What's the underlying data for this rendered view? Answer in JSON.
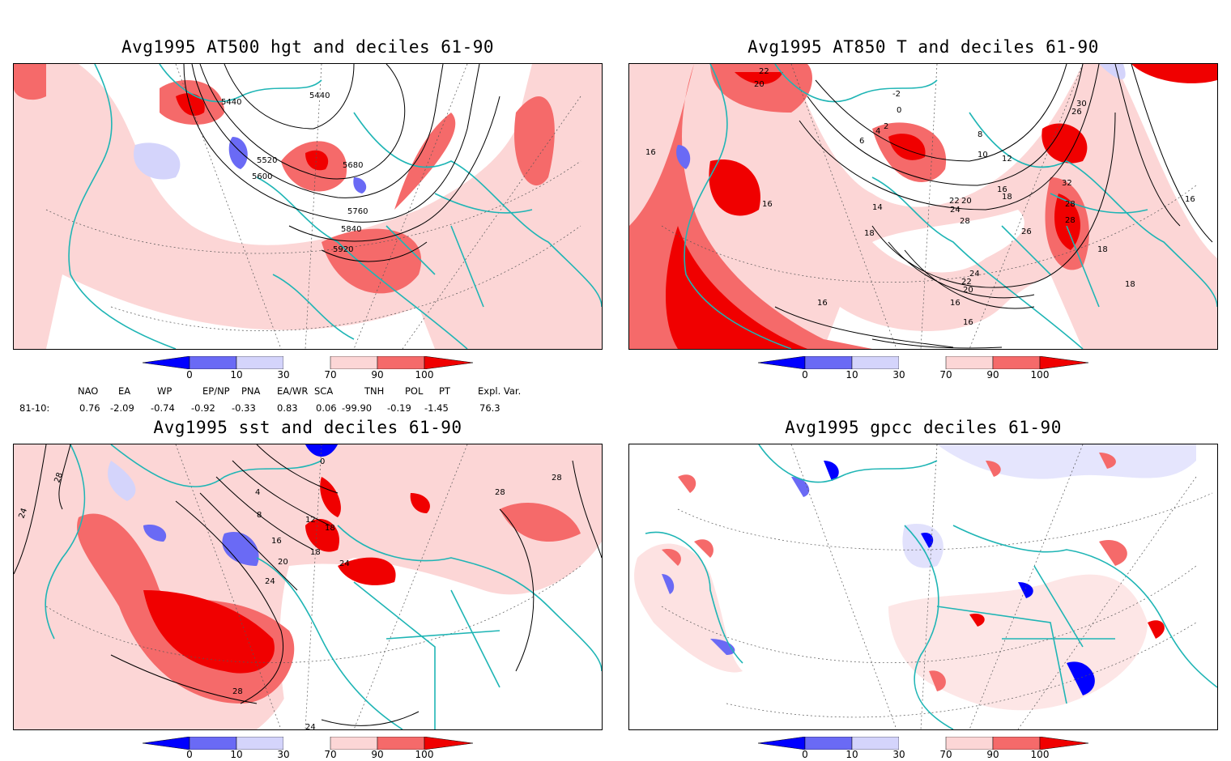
{
  "panels": [
    {
      "id": "p1",
      "title": "Avg1995 AT500 hgt and deciles 61-90",
      "contour_labels": [
        "5440",
        "5440",
        "5520",
        "5600",
        "5680",
        "5760",
        "5840",
        "5920"
      ]
    },
    {
      "id": "p2",
      "title": "Avg1995 AT850 T and deciles 61-90",
      "contour_labels": [
        "22",
        "20",
        "-2",
        "0",
        "2",
        "4",
        "6",
        "8",
        "10",
        "12",
        "14",
        "16",
        "16",
        "18",
        "18",
        "16",
        "20",
        "22",
        "24",
        "26",
        "28",
        "30",
        "32",
        "28",
        "28",
        "26",
        "24",
        "22",
        "20",
        "18",
        "16",
        "16",
        "16",
        "18",
        "16"
      ]
    },
    {
      "id": "p3",
      "title": "Avg1995 sst and deciles 61-90",
      "contour_labels": [
        "28",
        "24",
        "28",
        "28",
        "0",
        "4",
        "8",
        "12",
        "16",
        "20",
        "24",
        "18",
        "24",
        "28",
        "18",
        "24"
      ]
    },
    {
      "id": "p4",
      "title": "Avg1995 gpcc deciles 61-90",
      "contour_labels": []
    }
  ],
  "colorbar": {
    "labels": [
      "0",
      "10",
      "30",
      "70",
      "90",
      "100"
    ],
    "colors": [
      "#0000ff",
      "#6a6af5",
      "#d4d4fb",
      "#ffffff",
      "#fcd6d6",
      "#f56a6a",
      "#f00000"
    ]
  },
  "indices": {
    "row_label": "81-10:",
    "headers": [
      "NAO",
      "EA",
      "WP",
      "EP/NP",
      "PNA",
      "EA/WR",
      "SCA",
      "TNH",
      "POL",
      "PT",
      "Expl. Var."
    ],
    "values": [
      "0.76",
      "-2.09",
      "-0.74",
      "-0.92",
      "-0.33",
      "0.83",
      "0.06",
      "-99.90",
      "-0.19",
      "-1.45",
      "76.3"
    ]
  },
  "style": {
    "coast": "#1fb5b5",
    "grid": "#555555",
    "contour": "#000000"
  }
}
